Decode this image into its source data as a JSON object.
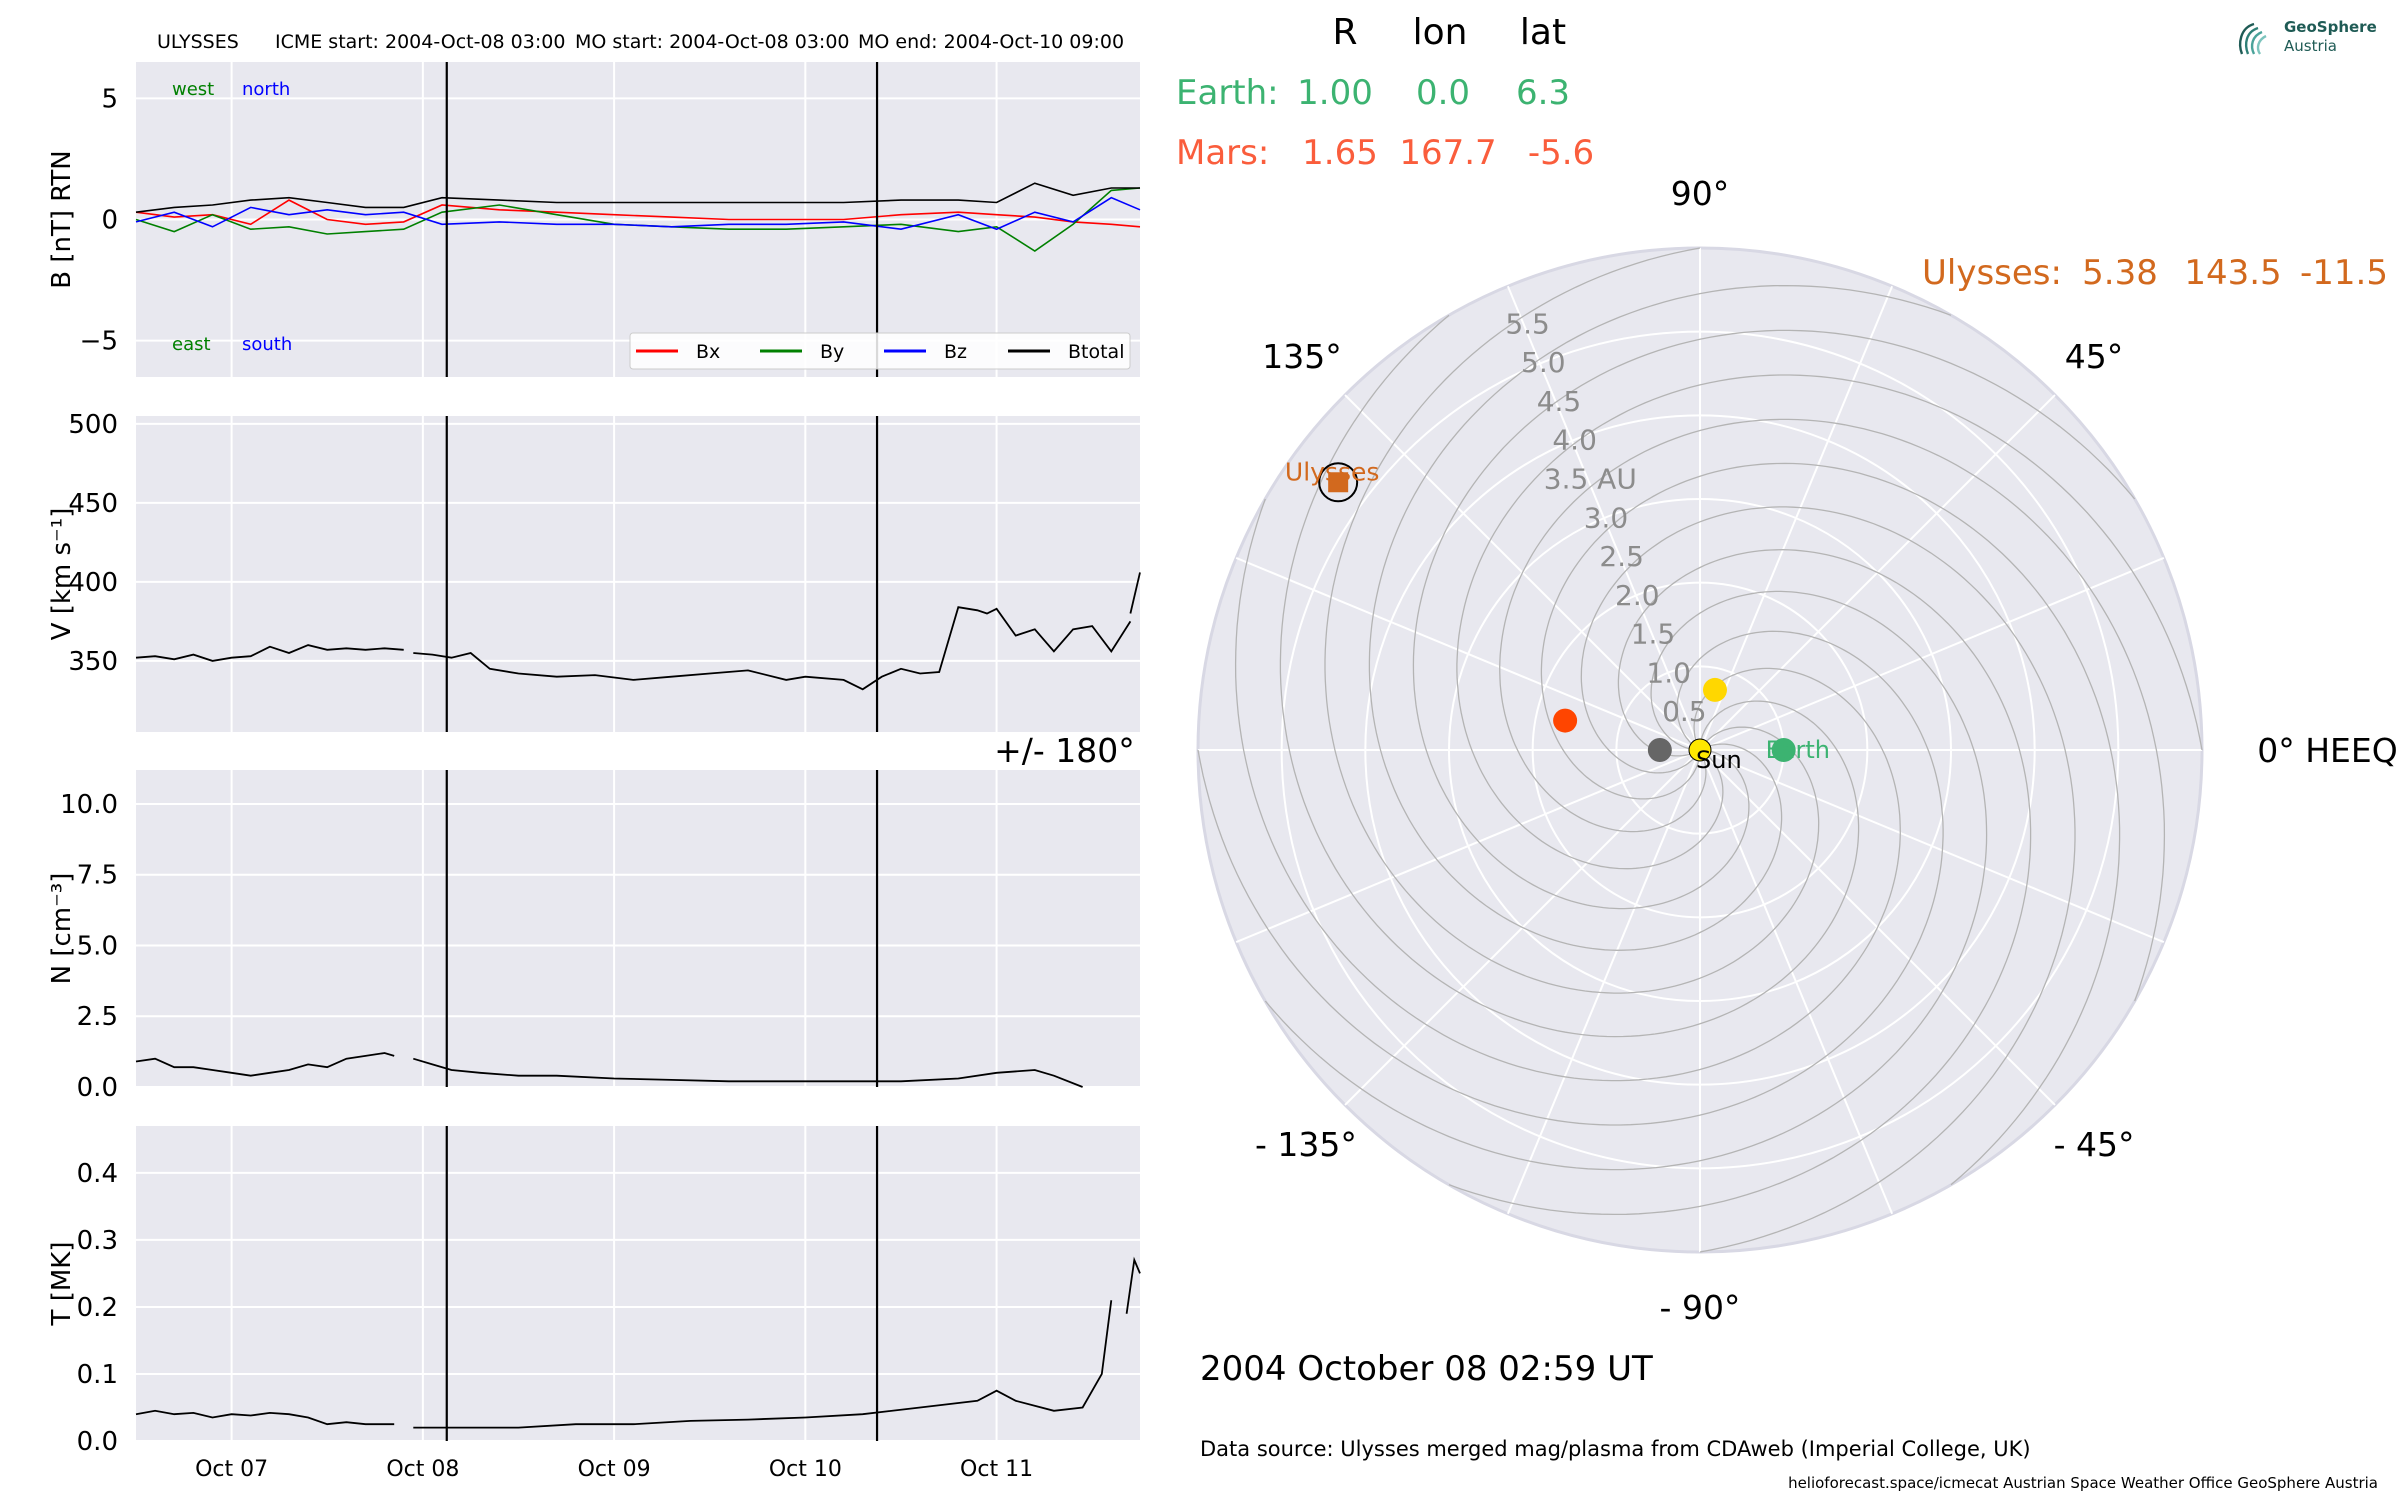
{
  "header": {
    "spacecraft": "ULYSSES",
    "icme_start": "ICME start: 2004-Oct-08 03:00",
    "mo_start": "MO start: 2004-Oct-08 03:00",
    "mo_end": "MO end: 2004-Oct-10 09:00"
  },
  "logo": {
    "name": "GeoSphere",
    "sub": "Austria"
  },
  "positions_table": {
    "headers": [
      "R",
      "lon",
      "lat"
    ],
    "rows": [
      {
        "label": "Earth:",
        "R": "1.00",
        "lon": "0.0",
        "lat": "6.3",
        "color": "#3cb371"
      },
      {
        "label": "Mars:",
        "R": "1.65",
        "lon": "167.7",
        "lat": "-5.6",
        "color": "#fa5d3c"
      }
    ],
    "ulysses": {
      "label": "Ulysses:",
      "R": "5.38",
      "lon": "143.5",
      "lat": "-11.5",
      "color": "#d2691e"
    }
  },
  "timestamp": "2004 October 08  02:59 UT",
  "data_source": "Data source: Ulysses merged mag/plasma from CDAweb (Imperial College, UK)",
  "footer": "helioforecast.space/icmecat   Austrian Space Weather Office   GeoSphere Austria",
  "colors": {
    "panel_bg": "#e8e8ef",
    "grid": "#ffffff",
    "bx": "#ff0000",
    "by": "#008000",
    "bz": "#0000ff",
    "btotal": "#000000",
    "sun": "#ffe800",
    "earth": "#3cb371",
    "mars": "#ff4500",
    "ulysses": "#d2691e",
    "gray_marker": "#666666",
    "venus_like": "#ffd700"
  },
  "chart_data": [
    {
      "type": "line",
      "panel": "magnetic field",
      "ylabel": "B [nT] RTN",
      "ylim": [
        -6.5,
        6.5
      ],
      "yticks": [
        -5,
        0,
        5
      ],
      "xlim_days": [
        6.5,
        11.75
      ],
      "annotations": {
        "west": "west",
        "north": "north",
        "east": "east",
        "south": "south"
      },
      "legend": {
        "placement": "lower-right",
        "entries": [
          "Bx",
          "By",
          "Bz",
          "Btotal"
        ]
      },
      "series": [
        {
          "name": "Bx",
          "color": "#ff0000",
          "x": [
            6.5,
            6.7,
            6.9,
            7.1,
            7.3,
            7.5,
            7.7,
            7.9,
            8.1,
            8.4,
            8.7,
            9.0,
            9.3,
            9.6,
            9.9,
            10.2,
            10.5,
            10.8,
            11.0,
            11.2,
            11.4,
            11.6,
            11.75
          ],
          "y": [
            0.3,
            0.1,
            0.2,
            -0.2,
            0.8,
            0.0,
            -0.2,
            -0.1,
            0.6,
            0.4,
            0.3,
            0.2,
            0.1,
            0.0,
            0.0,
            0.0,
            0.2,
            0.3,
            0.2,
            0.1,
            -0.1,
            -0.2,
            -0.3
          ]
        },
        {
          "name": "By",
          "color": "#008000",
          "x": [
            6.5,
            6.7,
            6.9,
            7.1,
            7.3,
            7.5,
            7.7,
            7.9,
            8.1,
            8.4,
            8.7,
            9.0,
            9.3,
            9.6,
            9.9,
            10.2,
            10.5,
            10.8,
            11.0,
            11.2,
            11.4,
            11.6,
            11.75
          ],
          "y": [
            0.0,
            -0.5,
            0.2,
            -0.4,
            -0.3,
            -0.6,
            -0.5,
            -0.4,
            0.3,
            0.6,
            0.2,
            -0.2,
            -0.3,
            -0.4,
            -0.4,
            -0.3,
            -0.2,
            -0.5,
            -0.3,
            -1.3,
            -0.2,
            1.2,
            1.3
          ]
        },
        {
          "name": "Bz",
          "color": "#0000ff",
          "x": [
            6.5,
            6.7,
            6.9,
            7.1,
            7.3,
            7.5,
            7.7,
            7.9,
            8.1,
            8.4,
            8.7,
            9.0,
            9.3,
            9.6,
            9.9,
            10.2,
            10.5,
            10.8,
            11.0,
            11.2,
            11.4,
            11.6,
            11.75
          ],
          "y": [
            -0.1,
            0.3,
            -0.3,
            0.5,
            0.2,
            0.4,
            0.2,
            0.3,
            -0.2,
            -0.1,
            -0.2,
            -0.2,
            -0.3,
            -0.2,
            -0.2,
            -0.1,
            -0.4,
            0.2,
            -0.4,
            0.3,
            -0.1,
            0.9,
            0.4
          ]
        },
        {
          "name": "Btotal",
          "color": "#000000",
          "x": [
            6.5,
            6.7,
            6.9,
            7.1,
            7.3,
            7.5,
            7.7,
            7.9,
            8.1,
            8.4,
            8.7,
            9.0,
            9.3,
            9.6,
            9.9,
            10.2,
            10.5,
            10.8,
            11.0,
            11.2,
            11.4,
            11.6,
            11.75
          ],
          "y": [
            0.3,
            0.5,
            0.6,
            0.8,
            0.9,
            0.7,
            0.5,
            0.5,
            0.9,
            0.8,
            0.7,
            0.7,
            0.7,
            0.7,
            0.7,
            0.7,
            0.8,
            0.8,
            0.7,
            1.5,
            1.0,
            1.3,
            1.3
          ]
        }
      ]
    },
    {
      "type": "line",
      "panel": "speed",
      "ylabel": "V [km s⁻¹]",
      "ylim": [
        305,
        505
      ],
      "yticks": [
        350,
        400,
        450,
        500
      ],
      "series": [
        {
          "name": "",
          "color": "#000000",
          "x": [
            6.5,
            6.6,
            6.7,
            6.8,
            6.9,
            7.0,
            7.1,
            7.2,
            7.3,
            7.4,
            7.5,
            7.6,
            7.7,
            7.8,
            7.9
          ],
          "y": [
            352,
            353,
            351,
            354,
            350,
            352,
            353,
            359,
            355,
            360,
            357,
            358,
            357,
            358,
            357
          ]
        },
        {
          "name": "",
          "color": "#000000",
          "x": [
            7.95,
            8.05,
            8.15,
            8.25,
            8.35,
            8.5,
            8.7,
            8.9,
            9.1,
            9.3,
            9.5,
            9.7,
            9.9,
            10.0,
            10.2,
            10.3,
            10.4,
            10.5,
            10.6,
            10.7,
            10.8,
            10.9,
            10.95,
            11.0,
            11.1,
            11.2,
            11.3,
            11.4,
            11.5,
            11.6,
            11.7
          ],
          "y": [
            355,
            354,
            352,
            355,
            345,
            342,
            340,
            341,
            338,
            340,
            342,
            344,
            338,
            340,
            338,
            332,
            340,
            345,
            342,
            343,
            384,
            382,
            380,
            383,
            366,
            370,
            356,
            370,
            372,
            356,
            375
          ]
        },
        {
          "name": "",
          "color": "#000000",
          "x": [
            11.7,
            11.75
          ],
          "y": [
            380,
            406
          ]
        }
      ]
    },
    {
      "type": "line",
      "panel": "density",
      "ylabel": "N [cm⁻³]",
      "ylim": [
        0,
        11.2
      ],
      "yticks": [
        0.0,
        2.5,
        5.0,
        7.5,
        10.0
      ],
      "series": [
        {
          "name": "",
          "color": "#000000",
          "x": [
            6.5,
            6.6,
            6.7,
            6.8,
            6.9,
            7.0,
            7.1,
            7.2,
            7.3,
            7.4,
            7.5,
            7.6,
            7.7,
            7.8,
            7.85
          ],
          "y": [
            0.9,
            1.0,
            0.7,
            0.7,
            0.6,
            0.5,
            0.4,
            0.5,
            0.6,
            0.8,
            0.7,
            1.0,
            1.1,
            1.2,
            1.1
          ]
        },
        {
          "name": "",
          "color": "#000000",
          "x": [
            7.95,
            8.05,
            8.15,
            8.3,
            8.5,
            8.7,
            9.0,
            9.3,
            9.6,
            9.9,
            10.2,
            10.5,
            10.8,
            11.0,
            11.2,
            11.3,
            11.45
          ],
          "y": [
            1.0,
            0.8,
            0.6,
            0.5,
            0.4,
            0.4,
            0.3,
            0.25,
            0.2,
            0.2,
            0.2,
            0.2,
            0.3,
            0.5,
            0.6,
            0.4,
            0.0
          ]
        }
      ]
    },
    {
      "type": "line",
      "panel": "temperature",
      "ylabel": "T [MK]",
      "ylim": [
        0,
        0.47
      ],
      "yticks": [
        0.0,
        0.1,
        0.2,
        0.3,
        0.4
      ],
      "xticks": [
        {
          "value": 7,
          "label": "Oct 07"
        },
        {
          "value": 8,
          "label": "Oct 08"
        },
        {
          "value": 9,
          "label": "Oct 09"
        },
        {
          "value": 10,
          "label": "Oct 10"
        },
        {
          "value": 11,
          "label": "Oct 11"
        }
      ],
      "series": [
        {
          "name": "",
          "color": "#000000",
          "x": [
            6.5,
            6.6,
            6.7,
            6.8,
            6.9,
            7.0,
            7.1,
            7.2,
            7.3,
            7.4,
            7.5,
            7.6,
            7.7,
            7.85
          ],
          "y": [
            0.04,
            0.045,
            0.04,
            0.042,
            0.035,
            0.04,
            0.038,
            0.042,
            0.04,
            0.035,
            0.025,
            0.028,
            0.025,
            0.025
          ]
        },
        {
          "name": "",
          "color": "#000000",
          "x": [
            7.95,
            8.1,
            8.3,
            8.5,
            8.8,
            9.1,
            9.4,
            9.7,
            10.0,
            10.3,
            10.6,
            10.9,
            11.0,
            11.1,
            11.3,
            11.45,
            11.55,
            11.6
          ],
          "y": [
            0.02,
            0.02,
            0.02,
            0.02,
            0.025,
            0.025,
            0.03,
            0.032,
            0.035,
            0.04,
            0.05,
            0.06,
            0.075,
            0.06,
            0.045,
            0.05,
            0.1,
            0.21
          ]
        },
        {
          "name": "",
          "color": "#000000",
          "x": [
            11.68,
            11.72,
            11.75
          ],
          "y": [
            0.19,
            0.27,
            0.25
          ]
        }
      ]
    },
    {
      "type": "scatter",
      "panel": "polar HEEQ",
      "angle_labels": [
        "0° HEEQ",
        "45°",
        "90°",
        "135°",
        "+/- 180°",
        "- 135°",
        "- 90°",
        "- 45°"
      ],
      "radial_labels": [
        "0.5",
        "1.0",
        "1.5",
        "2.0",
        "2.5",
        "3.0",
        "3.5 AU",
        "4.0",
        "4.5",
        "5.0",
        "5.5"
      ],
      "rmax": 6.0,
      "points": [
        {
          "name": "Sun",
          "r": 0.0,
          "lon": 0,
          "color": "#ffe800",
          "label": "Sun"
        },
        {
          "name": "Earth",
          "r": 1.0,
          "lon": 0.0,
          "color": "#3cb371",
          "label": "Earth"
        },
        {
          "name": "Mars",
          "r": 1.65,
          "lon": 167.7,
          "color": "#ff4500",
          "label": ""
        },
        {
          "name": "Ulysses",
          "r": 5.38,
          "lon": 143.5,
          "color": "#d2691e",
          "label": "Ulysses"
        },
        {
          "name": "gray",
          "r": 0.48,
          "lon": 180,
          "color": "#666666",
          "label": ""
        },
        {
          "name": "yellow",
          "r": 0.74,
          "lon": 76,
          "color": "#ffd700",
          "label": ""
        }
      ]
    }
  ]
}
